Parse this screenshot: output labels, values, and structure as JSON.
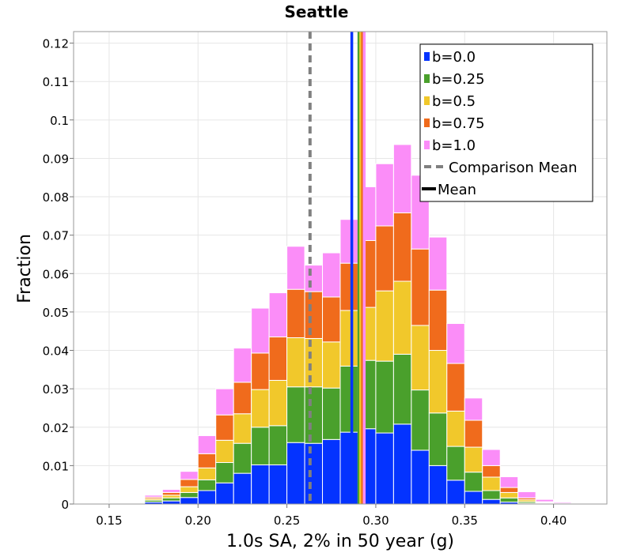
{
  "chart_data": {
    "type": "bar",
    "stacked": true,
    "title": "Seattle",
    "xlabel": "1.0s SA, 2% in 50 year (g)",
    "ylabel": "Fraction",
    "xlim": [
      0.13,
      0.43
    ],
    "ylim": [
      0,
      0.123
    ],
    "bin_width": 0.01,
    "grid": true,
    "legend_position": "top-right",
    "x_ticks": [
      0.15,
      0.2,
      0.25,
      0.3,
      0.35,
      0.4
    ],
    "x_tick_labels": [
      "0.15",
      "0.20",
      "0.25",
      "0.30",
      "0.35",
      "0.40"
    ],
    "y_ticks": [
      0,
      0.01,
      0.02,
      0.03,
      0.04,
      0.05,
      0.06,
      0.07,
      0.08,
      0.09,
      0.1,
      0.11,
      0.12
    ],
    "y_tick_labels": [
      "0",
      "0.01",
      "0.02",
      "0.03",
      "0.04",
      "0.05",
      "0.06",
      "0.07",
      "0.08",
      "0.09",
      "0.1",
      "0.11",
      "0.12"
    ],
    "bin_centers": [
      0.145,
      0.155,
      0.165,
      0.175,
      0.185,
      0.195,
      0.205,
      0.215,
      0.225,
      0.235,
      0.245,
      0.255,
      0.265,
      0.275,
      0.285,
      0.295,
      0.305,
      0.315,
      0.325,
      0.335,
      0.345,
      0.355,
      0.365,
      0.375,
      0.385,
      0.395,
      0.405,
      0.415
    ],
    "series": [
      {
        "name": "b=0.0",
        "color": "#0433ff",
        "values": [
          0.0,
          0.0,
          0.0002,
          0.0005,
          0.0008,
          0.0017,
          0.0035,
          0.0055,
          0.008,
          0.0102,
          0.0102,
          0.016,
          0.0158,
          0.0168,
          0.0187,
          0.0196,
          0.0185,
          0.0208,
          0.014,
          0.01,
          0.0062,
          0.0033,
          0.0012,
          0.0005,
          0.0002,
          0.0001,
          0.0,
          0.0
        ]
      },
      {
        "name": "b=0.25",
        "color": "#4aa02c",
        "values": [
          0.0,
          0.0001,
          0.0002,
          0.0005,
          0.0008,
          0.0013,
          0.0028,
          0.0053,
          0.0078,
          0.0098,
          0.0102,
          0.0145,
          0.0147,
          0.0134,
          0.0172,
          0.0178,
          0.0187,
          0.0182,
          0.0157,
          0.0137,
          0.0088,
          0.005,
          0.0023,
          0.0011,
          0.0004,
          0.0001,
          0.0,
          0.0
        ]
      },
      {
        "name": "b=0.5",
        "color": "#f1c82b",
        "values": [
          0.0,
          0.0,
          0.0002,
          0.0004,
          0.0007,
          0.0015,
          0.0031,
          0.0058,
          0.0077,
          0.0098,
          0.0118,
          0.0128,
          0.0126,
          0.012,
          0.0145,
          0.0138,
          0.0183,
          0.019,
          0.0168,
          0.0163,
          0.0092,
          0.0065,
          0.0035,
          0.0014,
          0.0005,
          0.0002,
          0.0001,
          0.0
        ]
      },
      {
        "name": "b=0.75",
        "color": "#f06b1c",
        "values": [
          0.0,
          0.0,
          0.0002,
          0.0004,
          0.0007,
          0.0019,
          0.0037,
          0.0066,
          0.0082,
          0.0095,
          0.0113,
          0.0126,
          0.0122,
          0.0117,
          0.0123,
          0.0174,
          0.0169,
          0.0178,
          0.0199,
          0.0157,
          0.0124,
          0.007,
          0.003,
          0.0013,
          0.0005,
          0.0002,
          0.0001,
          0.0
        ]
      },
      {
        "name": "b=1.0",
        "color": "#fb8df8",
        "values": [
          0.0,
          0.0001,
          0.0002,
          0.0005,
          0.0008,
          0.0021,
          0.0047,
          0.0068,
          0.0089,
          0.0117,
          0.0115,
          0.0112,
          0.0069,
          0.0115,
          0.0114,
          0.014,
          0.0162,
          0.0178,
          0.0192,
          0.0138,
          0.0104,
          0.0058,
          0.0042,
          0.0028,
          0.0016,
          0.0006,
          0.0003,
          0.0001
        ]
      }
    ],
    "vertical_lines": [
      {
        "name": "Comparison Mean",
        "x": 0.263,
        "color": "#808080",
        "style": "dashed",
        "in_legend": true
      },
      {
        "name": "Mean",
        "x": 0.291,
        "color": "#000000",
        "style": "solid",
        "in_legend": true
      },
      {
        "name": "b=0.0",
        "x": 0.2865,
        "color": "#0433ff",
        "style": "solid",
        "in_legend": false
      },
      {
        "name": "b=0.25",
        "x": 0.2905,
        "color": "#4aa02c",
        "style": "solid",
        "in_legend": false
      },
      {
        "name": "b=0.5",
        "x": 0.2915,
        "color": "#f1c82b",
        "style": "solid",
        "in_legend": false
      },
      {
        "name": "b=0.75",
        "x": 0.2925,
        "color": "#f06b1c",
        "style": "solid",
        "in_legend": false
      },
      {
        "name": "b=1.0",
        "x": 0.2935,
        "color": "#fb8df8",
        "style": "solid",
        "in_legend": false
      }
    ],
    "legend": [
      {
        "label": "b=0.0",
        "color": "#0433ff",
        "kind": "box"
      },
      {
        "label": "b=0.25",
        "color": "#4aa02c",
        "kind": "box"
      },
      {
        "label": "b=0.5",
        "color": "#f1c82b",
        "kind": "box"
      },
      {
        "label": "b=0.75",
        "color": "#f06b1c",
        "kind": "box"
      },
      {
        "label": "b=1.0",
        "color": "#fb8df8",
        "kind": "box"
      },
      {
        "label": "Comparison Mean",
        "color": "#808080",
        "kind": "dashed-line"
      },
      {
        "label": "Mean",
        "color": "#000000",
        "kind": "solid-line"
      }
    ]
  }
}
